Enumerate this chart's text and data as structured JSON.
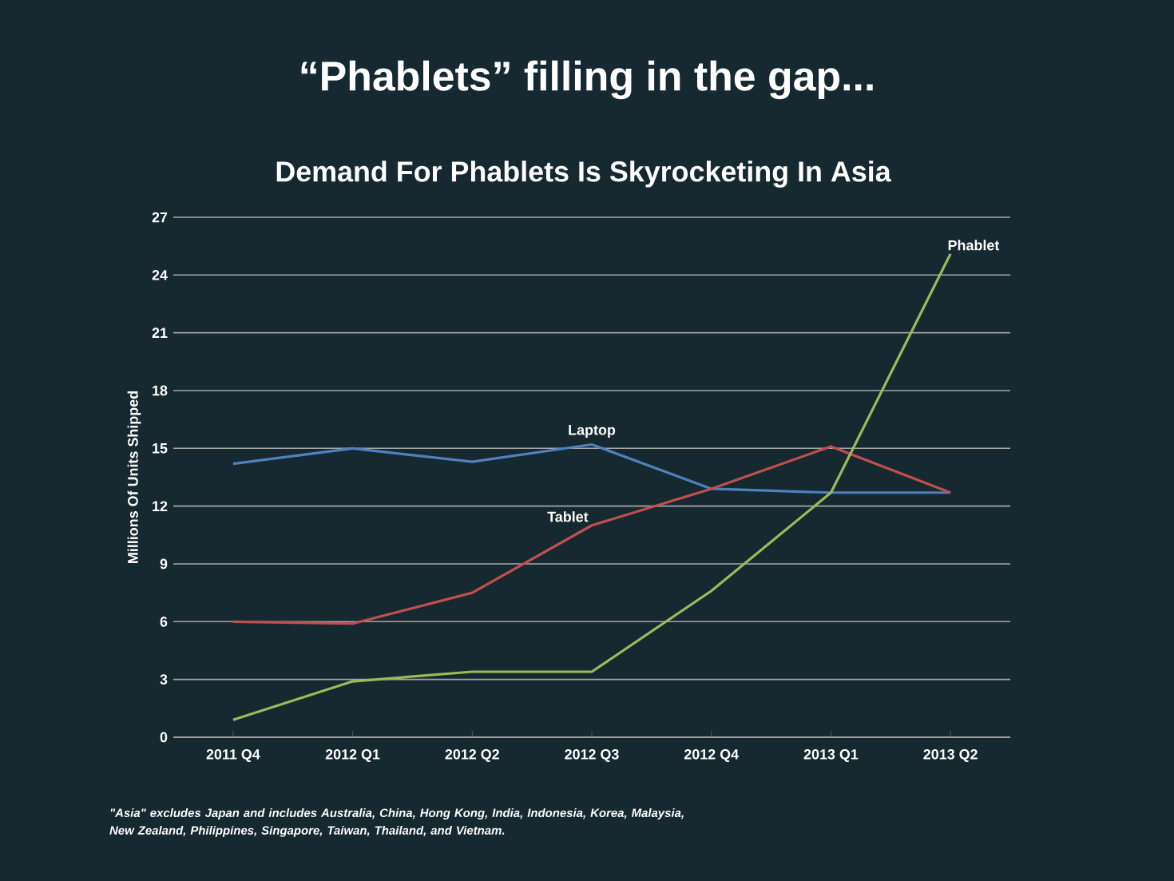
{
  "chart_data": {
    "type": "line",
    "title": "“Phablets” filling in the gap...",
    "subtitle": "Demand For Phablets Is Skyrocketing In Asia",
    "ylabel": "Millions Of Units Shipped",
    "categories": [
      "2011 Q4",
      "2012 Q1",
      "2012 Q2",
      "2012 Q3",
      "2012 Q4",
      "2013 Q1",
      "2013 Q2"
    ],
    "series": [
      {
        "name": "Laptop",
        "color": "#4f81bd",
        "values": [
          14.2,
          15.0,
          14.3,
          15.2,
          12.9,
          12.7,
          12.7
        ]
      },
      {
        "name": "Tablet",
        "color": "#c0504d",
        "values": [
          6.0,
          5.9,
          7.5,
          11.0,
          12.9,
          15.1,
          12.7
        ]
      },
      {
        "name": "Phablet",
        "color": "#9bbb59",
        "values": [
          0.9,
          2.9,
          3.4,
          3.4,
          7.6,
          12.7,
          25.1
        ]
      }
    ],
    "ylim": [
      0,
      27
    ],
    "yticks": [
      0,
      3,
      6,
      9,
      12,
      15,
      18,
      21,
      24,
      27
    ],
    "grid": "y",
    "legend": false,
    "marker": "none",
    "line_style": "solid",
    "annotations": [
      "\"Asia\" excludes Japan and includes Australia, China, Hong Kong, India, Indonesia, Korea, Malaysia, New Zealand, Philippines, Singapore, Taiwan, Thailand, and Vietnam."
    ]
  }
}
